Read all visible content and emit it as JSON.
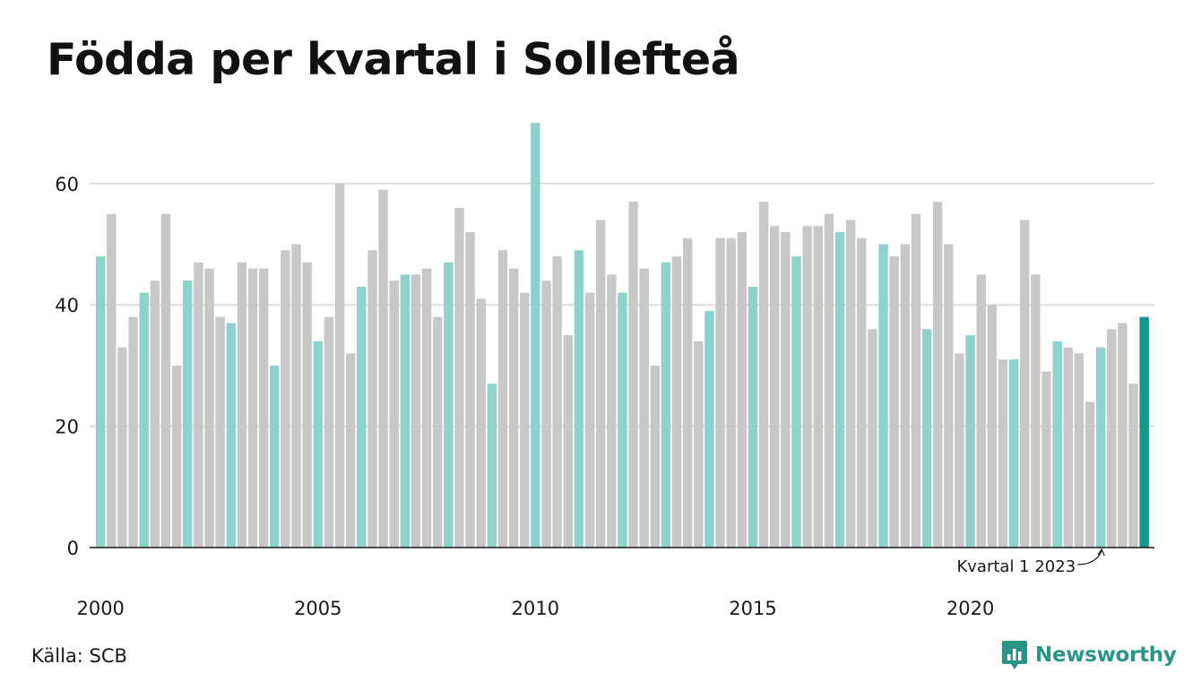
{
  "title": "Födda per kvartal i Sollefteå",
  "source": "Källa: SCB",
  "brand": {
    "name": "Newsworthy",
    "icon": "newsworthy-logo-icon"
  },
  "colors": {
    "q1": "#8dd3cb",
    "other": "#c8c8c8",
    "latest": "#16968a",
    "grid": "#dddddd",
    "axis": "#1a1a1a"
  },
  "chart_data": {
    "type": "bar",
    "title": "Födda per kvartal i Sollefteå",
    "xlabel": "",
    "ylabel": "",
    "ylim": [
      0,
      70
    ],
    "yticks": [
      0,
      20,
      40,
      60
    ],
    "xticks": [
      "2000",
      "2005",
      "2010",
      "2015",
      "2020"
    ],
    "grid": true,
    "legend": "none",
    "annotation": {
      "label": "Kvartal 1 2023",
      "target": "2023 K1"
    },
    "categories": [
      "2000 K1",
      "2000 K2",
      "2000 K3",
      "2000 K4",
      "2001 K1",
      "2001 K2",
      "2001 K3",
      "2001 K4",
      "2002 K1",
      "2002 K2",
      "2002 K3",
      "2002 K4",
      "2003 K1",
      "2003 K2",
      "2003 K3",
      "2003 K4",
      "2004 K1",
      "2004 K2",
      "2004 K3",
      "2004 K4",
      "2005 K1",
      "2005 K2",
      "2005 K3",
      "2005 K4",
      "2006 K1",
      "2006 K2",
      "2006 K3",
      "2006 K4",
      "2007 K1",
      "2007 K2",
      "2007 K3",
      "2007 K4",
      "2008 K1",
      "2008 K2",
      "2008 K3",
      "2008 K4",
      "2009 K1",
      "2009 K2",
      "2009 K3",
      "2009 K4",
      "2010 K1",
      "2010 K2",
      "2010 K3",
      "2010 K4",
      "2011 K1",
      "2011 K2",
      "2011 K3",
      "2011 K4",
      "2012 K1",
      "2012 K2",
      "2012 K3",
      "2012 K4",
      "2013 K1",
      "2013 K2",
      "2013 K3",
      "2013 K4",
      "2014 K1",
      "2014 K2",
      "2014 K3",
      "2014 K4",
      "2015 K1",
      "2015 K2",
      "2015 K3",
      "2015 K4",
      "2016 K1",
      "2016 K2",
      "2016 K3",
      "2016 K4",
      "2017 K1",
      "2017 K2",
      "2017 K3",
      "2017 K4",
      "2018 K1",
      "2018 K2",
      "2018 K3",
      "2018 K4",
      "2019 K1",
      "2019 K2",
      "2019 K3",
      "2019 K4",
      "2020 K1",
      "2020 K2",
      "2020 K3",
      "2020 K4",
      "2021 K1",
      "2021 K2",
      "2021 K3",
      "2021 K4",
      "2022 K1",
      "2022 K2",
      "2022 K3",
      "2022 K4",
      "2023 K1",
      "2023 K2",
      "2023 K3",
      "2023 K4",
      "2024 K1"
    ],
    "values": [
      48,
      55,
      33,
      38,
      42,
      44,
      55,
      30,
      44,
      47,
      46,
      38,
      37,
      47,
      46,
      46,
      30,
      49,
      50,
      47,
      34,
      38,
      60,
      32,
      43,
      49,
      59,
      44,
      45,
      45,
      46,
      38,
      47,
      56,
      52,
      41,
      27,
      49,
      46,
      42,
      70,
      44,
      48,
      35,
      49,
      42,
      54,
      45,
      42,
      57,
      46,
      30,
      47,
      48,
      51,
      34,
      39,
      51,
      51,
      52,
      43,
      57,
      53,
      52,
      48,
      53,
      53,
      55,
      52,
      54,
      51,
      36,
      50,
      48,
      50,
      55,
      36,
      57,
      50,
      32,
      35,
      45,
      40,
      31,
      31,
      54,
      45,
      29,
      34,
      33,
      32,
      24,
      33,
      36,
      37,
      27,
      38
    ]
  }
}
